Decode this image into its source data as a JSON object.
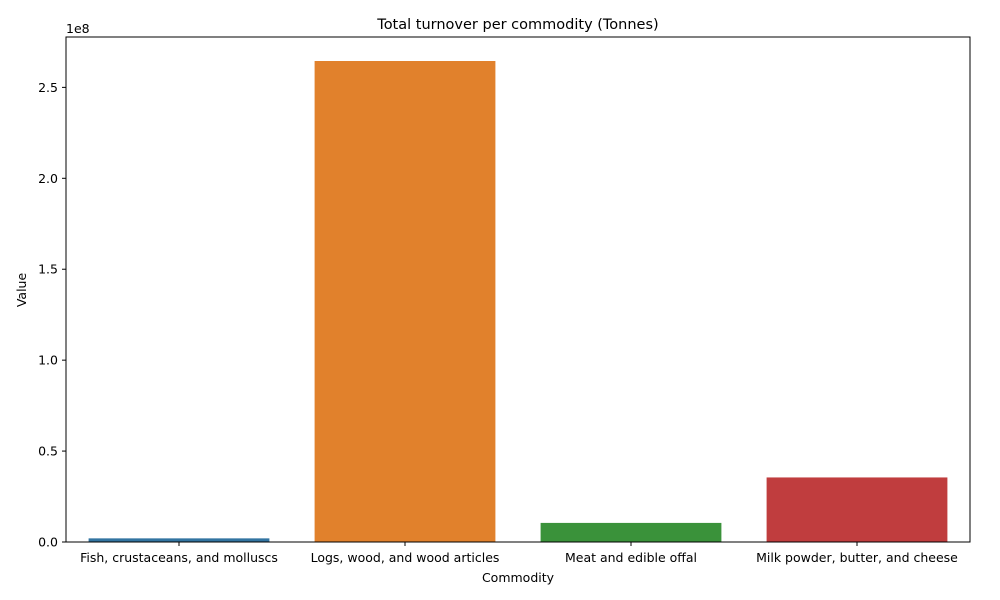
{
  "chart_data": {
    "type": "bar",
    "title": "Total turnover per commodity (Tonnes)",
    "xlabel": "Commodity",
    "ylabel": "Value",
    "offset_label": "1e8",
    "categories": [
      "Fish, crustaceans, and molluscs",
      "Logs, wood, and wood articles",
      "Meat and edible offal",
      "Milk powder, butter, and cheese"
    ],
    "values": [
      2000000,
      264500000,
      10500000,
      35500000
    ],
    "colors": [
      "#3274a1",
      "#e1812c",
      "#3a923a",
      "#c03d3e"
    ],
    "ylim": [
      0,
      277700000
    ],
    "yticks": [
      0,
      50000000,
      100000000,
      150000000,
      200000000,
      250000000
    ],
    "ytick_labels": [
      "0.0",
      "0.5",
      "1.0",
      "1.5",
      "2.0",
      "2.5"
    ],
    "grid": false,
    "legend": "none"
  }
}
